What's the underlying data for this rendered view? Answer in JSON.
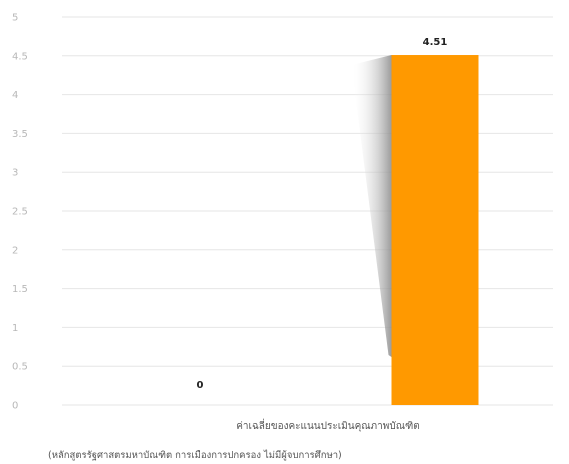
{
  "chart_data": {
    "type": "bar",
    "categories": [
      "ค่าเฉลี่ยของคะแนนประเมินคุณภาพบัณฑิต"
    ],
    "series": [
      {
        "values": [
          0
        ],
        "color": "#cccccc"
      },
      {
        "values": [
          4.51
        ],
        "color": "#ff9900"
      }
    ],
    "data_labels": [
      "0",
      "4.51"
    ],
    "ylim": [
      0,
      5
    ],
    "yticks": [
      "0",
      "0.5",
      "1",
      "1.5",
      "2",
      "2.5",
      "3",
      "3.5",
      "4",
      "4.5",
      "5"
    ],
    "grid": true,
    "caption": "(หลักสูตรรัฐศาสตรมหาบัณฑิต การเมืองการปกครอง ไม่มีผู้จบการศึกษา)"
  }
}
